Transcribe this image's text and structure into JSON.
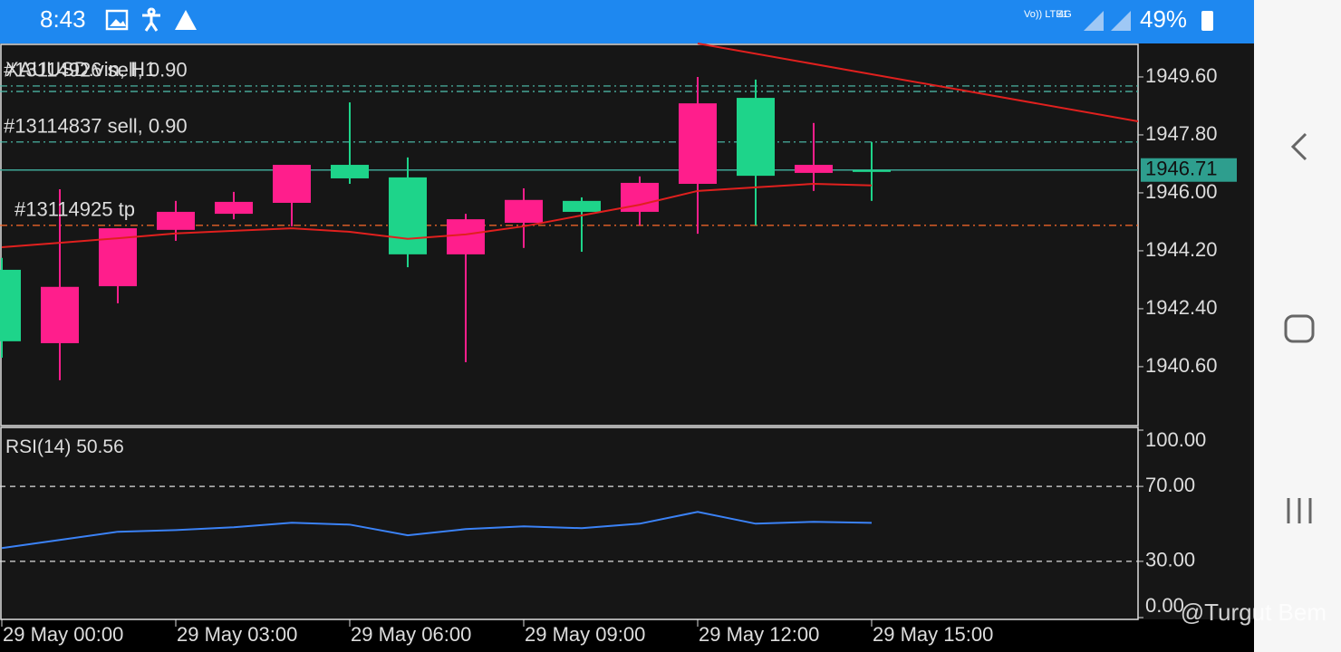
{
  "status_bar": {
    "time": "8:43",
    "carrier": "Vo)) LTE1",
    "network": "4G",
    "battery": "49%"
  },
  "chart_data": {
    "type": "candlestick",
    "title": "XAUUSD.vin, H1",
    "x_labels": [
      "29 May 00:00",
      "29 May 03:00",
      "29 May 06:00",
      "29 May 09:00",
      "29 May 12:00",
      "29 May 15:00"
    ],
    "up_color": "#1ed48a",
    "down_color": "#ff1e8c",
    "candles": [
      {
        "open": 1941.39,
        "high": 1943.98,
        "low": 1940.88,
        "close": 1943.61
      },
      {
        "open": 1943.08,
        "high": 1946.11,
        "low": 1940.18,
        "close": 1941.33
      },
      {
        "open": 1944.9,
        "high": 1944.9,
        "low": 1942.57,
        "close": 1943.1
      },
      {
        "open": 1945.41,
        "high": 1945.75,
        "low": 1944.51,
        "close": 1944.85
      },
      {
        "open": 1945.72,
        "high": 1946.03,
        "low": 1945.18,
        "close": 1945.35
      },
      {
        "open": 1946.87,
        "high": 1946.87,
        "low": 1944.96,
        "close": 1945.69
      },
      {
        "open": 1946.45,
        "high": 1948.81,
        "low": 1946.28,
        "close": 1946.87
      },
      {
        "open": 1944.09,
        "high": 1947.1,
        "low": 1943.69,
        "close": 1946.48
      },
      {
        "open": 1945.18,
        "high": 1945.35,
        "low": 1940.74,
        "close": 1944.09
      },
      {
        "open": 1945.78,
        "high": 1946.14,
        "low": 1944.29,
        "close": 1945.07
      },
      {
        "open": 1945.41,
        "high": 1945.86,
        "low": 1944.17,
        "close": 1945.75
      },
      {
        "open": 1946.31,
        "high": 1946.51,
        "low": 1944.99,
        "close": 1945.41
      },
      {
        "open": 1948.78,
        "high": 1949.6,
        "low": 1944.73,
        "close": 1946.28
      },
      {
        "open": 1946.53,
        "high": 1949.52,
        "low": 1944.99,
        "close": 1948.95
      },
      {
        "open": 1946.87,
        "high": 1948.17,
        "low": 1946.06,
        "close": 1946.62
      },
      {
        "open": 1946.65,
        "high": 1947.58,
        "low": 1945.75,
        "close": 1946.71
      }
    ],
    "ma": {
      "color": "#e0201e",
      "values": [
        1944.31,
        1944.45,
        1944.59,
        1944.74,
        1944.82,
        1944.9,
        1944.79,
        1944.57,
        1944.71,
        1944.96,
        1945.3,
        1945.63,
        1946.06,
        1946.17,
        1946.28,
        1946.23
      ]
    },
    "ylim": [
      1938.77,
      1950.64
    ],
    "yticks": [
      {
        "value": 1949.6,
        "label": "1949.60"
      },
      {
        "value": 1947.8,
        "label": "1947.80"
      },
      {
        "value": 1946,
        "label": "1946.00"
      },
      {
        "value": 1944.2,
        "label": "1944.20"
      },
      {
        "value": 1942.4,
        "label": "1942.40"
      },
      {
        "value": 1940.6,
        "label": "1940.60"
      }
    ],
    "current_price": 1946.71,
    "orders": [
      {
        "label": "#13114926 sell, 0.90",
        "value": 1949.32,
        "color": "#4fc3b0"
      },
      {
        "label": "#13114837 sell, 0.90",
        "value": 1947.58,
        "color": "#4fc3b0"
      },
      {
        "label": "#13114925 tp",
        "value": 1944.99,
        "color": "#ff6a2a"
      }
    ],
    "extra_levels": [
      1949.15
    ]
  },
  "rsi": {
    "type": "line",
    "label": "RSI(14)",
    "current": 50.56,
    "color": "#3b82f6",
    "values": [
      37.1,
      41.4,
      45.8,
      46.7,
      48.2,
      50.6,
      49.6,
      43.9,
      47.2,
      48.7,
      47.7,
      50.1,
      56.4,
      50.1,
      51.1,
      50.56
    ],
    "ylim": [
      0,
      100
    ],
    "yticks": [
      {
        "value": 100,
        "label": "100.00"
      },
      {
        "value": 70,
        "label": "70.00"
      },
      {
        "value": 30,
        "label": "30.00"
      },
      {
        "value": 0,
        "label": "0.00"
      }
    ],
    "levels": [
      70,
      30
    ]
  },
  "watermark": "@Turgut Bem"
}
